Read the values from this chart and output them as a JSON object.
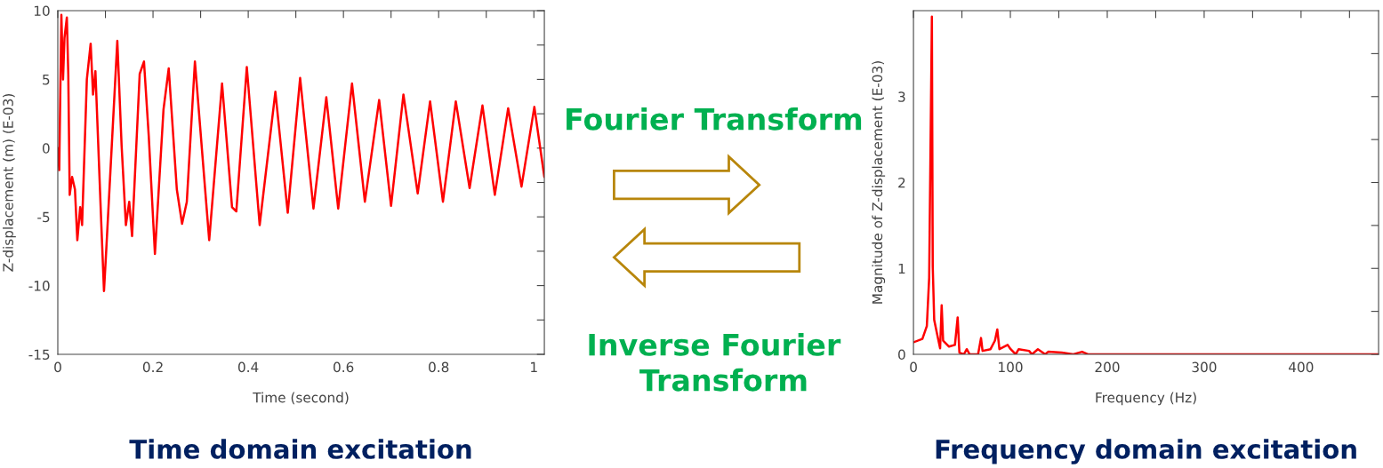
{
  "chart_data": [
    {
      "type": "line",
      "title": "Time domain excitation",
      "xlabel": "Time (second)",
      "ylabel": "Z-displacement (m) (E-03)",
      "xlim": [
        0,
        1.022
      ],
      "ylim": [
        -15,
        10
      ],
      "xticks": [
        0,
        {
          "value": 0.1,
          "label": null
        },
        0.2,
        {
          "value": 0.3,
          "label": null
        },
        0.4,
        {
          "value": 0.5,
          "label": null
        },
        0.6,
        {
          "value": 0.7,
          "label": null
        },
        0.8,
        {
          "value": 0.9,
          "label": null
        },
        1
      ],
      "yticks": [
        -15,
        {
          "value": -12.5,
          "label": null
        },
        -10,
        {
          "value": -7.5,
          "label": null
        },
        -5,
        {
          "value": -2.5,
          "label": null
        },
        0,
        {
          "value": 2.5,
          "label": null
        },
        5,
        {
          "value": 7.5,
          "label": null
        },
        10
      ],
      "grid": false,
      "series": [
        {
          "color": "#ff0000",
          "x": [
            0,
            0.003,
            0.0075,
            0.011,
            0.014,
            0.019,
            0.022,
            0.025,
            0.03,
            0.036,
            0.041,
            0.047,
            0.051,
            0.061,
            0.069,
            0.074,
            0.079,
            0.091,
            0.097,
            0.101,
            0.125,
            0.134,
            0.143,
            0.15,
            0.156,
            0.172,
            0.181,
            0.191,
            0.204,
            0.222,
            0.233,
            0.25,
            0.261,
            0.271,
            0.288,
            0.318,
            0.345,
            0.366,
            0.375,
            0.397,
            0.424,
            0.457,
            0.483,
            0.509,
            0.537,
            0.564,
            0.589,
            0.618,
            0.645,
            0.675,
            0.7,
            0.726,
            0.756,
            0.782,
            0.809,
            0.836,
            0.865,
            0.892,
            0.918,
            0.946,
            0.974,
            1.001,
            1.022
          ],
          "values": [
            0,
            -1.6,
            9.7,
            5.0,
            8.0,
            9.5,
            5.4,
            -3.4,
            -2.1,
            -3.0,
            -6.7,
            -4.3,
            -5.6,
            5.0,
            7.6,
            3.9,
            5.6,
            -5.2,
            -10.4,
            -7.9,
            7.8,
            0.2,
            -5.6,
            -3.9,
            -6.4,
            5.4,
            6.3,
            0.9,
            -7.7,
            2.8,
            5.8,
            -3.0,
            -5.5,
            -3.9,
            6.3,
            -6.7,
            4.7,
            -4.3,
            -4.6,
            5.9,
            -5.6,
            4.1,
            -4.7,
            5.1,
            -4.4,
            3.7,
            -4.4,
            4.7,
            -3.9,
            3.5,
            -4.2,
            3.9,
            -3.3,
            3.4,
            -3.9,
            3.4,
            -2.9,
            3.1,
            -3.4,
            2.9,
            -2.8,
            3.0,
            -2.1
          ]
        }
      ]
    },
    {
      "type": "other",
      "annotations": [
        "Fourier Transform",
        "Inverse Fourier\n  Transform"
      ]
    },
    {
      "type": "line",
      "title": "Frequency domain excitation",
      "xlabel": "Frequency (Hz)",
      "ylabel": "Magnitude of Z-displacement (E-03)",
      "xlim": [
        0,
        480
      ],
      "ylim": [
        0,
        4
      ],
      "xticks": [
        0,
        {
          "value": 50,
          "label": null
        },
        100,
        {
          "value": 150,
          "label": null
        },
        200,
        {
          "value": 250,
          "label": null
        },
        300,
        {
          "value": 350,
          "label": null
        },
        400,
        {
          "value": 450,
          "label": null
        }
      ],
      "yticks": [
        0,
        {
          "value": 0.5,
          "label": null
        },
        1,
        {
          "value": 1.5,
          "label": null
        },
        2,
        {
          "value": 2.5,
          "label": null
        },
        3,
        {
          "value": 3.5,
          "label": null
        }
      ],
      "grid": false,
      "series": [
        {
          "color": "#ff0000",
          "x": [
            0,
            9.2,
            13.8,
            16.2,
            17.4,
            19.0,
            19.9,
            21.4,
            24.5,
            27.5,
            29.1,
            30.6,
            36.7,
            42.8,
            45.6,
            47.4,
            52,
            55,
            58,
            66.7,
            69.7,
            71.3,
            79.5,
            84.1,
            86.5,
            88.7,
            97.2,
            100.3,
            105.5,
            108.6,
            119.3,
            122.3,
            128.4,
            136,
            139,
            153,
            165,
            174,
            180,
            199,
            480
          ],
          "values": [
            0.14,
            0.18,
            0.33,
            0.89,
            2.18,
            3.93,
            1.02,
            0.4,
            0.23,
            0.07,
            0.57,
            0.16,
            0.09,
            0.11,
            0.43,
            0.02,
            0,
            0.06,
            0,
            0,
            0.19,
            0.04,
            0.06,
            0.16,
            0.29,
            0.06,
            0.11,
            0.06,
            0,
            0.06,
            0.04,
            0,
            0.06,
            0,
            0.03,
            0.02,
            0,
            0.03,
            0,
            0,
            0
          ]
        }
      ]
    }
  ]
}
